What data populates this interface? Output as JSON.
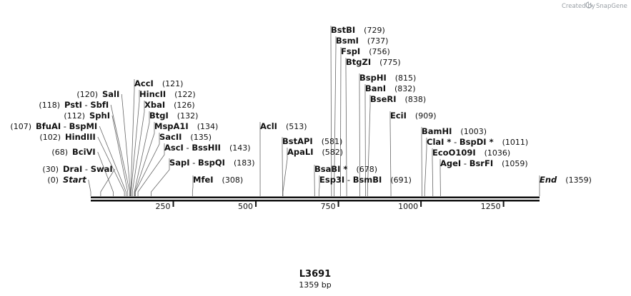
{
  "header": {
    "created_by": "Created by",
    "brand": "SnapGene"
  },
  "plasmid": {
    "name": "L3691",
    "length_label": "1359 bp",
    "length_bp": 1359
  },
  "axis": {
    "ticks": [
      {
        "value": 250,
        "label": "250"
      },
      {
        "value": 500,
        "label": "500"
      },
      {
        "value": 750,
        "label": "750"
      },
      {
        "value": 1000,
        "label": "1000"
      },
      {
        "value": 1250,
        "label": "1250"
      }
    ]
  },
  "sites": [
    {
      "key": "start",
      "parts": [
        {
          "t": "Start",
          "i": true
        }
      ],
      "pos_label": "(0)",
      "bp": 0
    },
    {
      "key": "draI",
      "parts": [
        {
          "t": "DraI"
        },
        {
          "t": " - ",
          "n": true
        },
        {
          "t": "SwaI"
        }
      ],
      "pos_label": "(30)",
      "bp": 30
    },
    {
      "key": "bciVI",
      "parts": [
        {
          "t": "BciVI"
        }
      ],
      "pos_label": "(68)",
      "bp": 68
    },
    {
      "key": "hindIII",
      "parts": [
        {
          "t": "HindIII"
        }
      ],
      "pos_label": "(102)",
      "bp": 102
    },
    {
      "key": "bfuAI",
      "parts": [
        {
          "t": "BfuAI"
        },
        {
          "t": " - ",
          "n": true
        },
        {
          "t": "BspMI"
        }
      ],
      "pos_label": "(107)",
      "bp": 107
    },
    {
      "key": "sphI",
      "parts": [
        {
          "t": "SphI"
        }
      ],
      "pos_label": "(112)",
      "bp": 112
    },
    {
      "key": "pstI",
      "parts": [
        {
          "t": "PstI"
        },
        {
          "t": " - ",
          "n": true
        },
        {
          "t": "SbfI"
        }
      ],
      "pos_label": "(118)",
      "bp": 118
    },
    {
      "key": "salI",
      "parts": [
        {
          "t": "SalI"
        }
      ],
      "pos_label": "(120)",
      "bp": 120
    },
    {
      "key": "accI",
      "parts": [
        {
          "t": "AccI"
        }
      ],
      "pos_label": "(121)",
      "bp": 121
    },
    {
      "key": "hincII",
      "parts": [
        {
          "t": "HincII"
        }
      ],
      "pos_label": "(122)",
      "bp": 122
    },
    {
      "key": "xbaI",
      "parts": [
        {
          "t": "XbaI"
        }
      ],
      "pos_label": "(126)",
      "bp": 126
    },
    {
      "key": "btgI",
      "parts": [
        {
          "t": "BtgI"
        }
      ],
      "pos_label": "(132)",
      "bp": 132
    },
    {
      "key": "mspA1I",
      "parts": [
        {
          "t": "MspA1I"
        }
      ],
      "pos_label": "(134)",
      "bp": 134
    },
    {
      "key": "sacII",
      "parts": [
        {
          "t": "SacII"
        }
      ],
      "pos_label": "(135)",
      "bp": 135
    },
    {
      "key": "ascI",
      "parts": [
        {
          "t": "AscI"
        },
        {
          "t": " - ",
          "n": true
        },
        {
          "t": "BssHII"
        }
      ],
      "pos_label": "(143)",
      "bp": 143
    },
    {
      "key": "sapI",
      "parts": [
        {
          "t": "SapI"
        },
        {
          "t": " - ",
          "n": true
        },
        {
          "t": "BspQI"
        }
      ],
      "pos_label": "(183)",
      "bp": 183
    },
    {
      "key": "mfeI",
      "parts": [
        {
          "t": "MfeI"
        }
      ],
      "pos_label": "(308)",
      "bp": 308
    },
    {
      "key": "aclI",
      "parts": [
        {
          "t": "AclI"
        }
      ],
      "pos_label": "(513)",
      "bp": 513
    },
    {
      "key": "bstAPI",
      "parts": [
        {
          "t": "BstAPI"
        }
      ],
      "pos_label": "(581)",
      "bp": 581
    },
    {
      "key": "apaLI",
      "parts": [
        {
          "t": "ApaLI"
        }
      ],
      "pos_label": "(582)",
      "bp": 582
    },
    {
      "key": "bsaBI",
      "parts": [
        {
          "t": "BsaBI"
        },
        {
          "t": " *"
        }
      ],
      "pos_label": "(678)",
      "bp": 678
    },
    {
      "key": "esp3I",
      "parts": [
        {
          "t": "Esp3I"
        },
        {
          "t": " - ",
          "n": true
        },
        {
          "t": "BsmBI"
        }
      ],
      "pos_label": "(691)",
      "bp": 691
    },
    {
      "key": "bstBI",
      "parts": [
        {
          "t": "BstBI"
        }
      ],
      "pos_label": "(729)",
      "bp": 729
    },
    {
      "key": "bsmI",
      "parts": [
        {
          "t": "BsmI"
        }
      ],
      "pos_label": "(737)",
      "bp": 737
    },
    {
      "key": "fspI",
      "parts": [
        {
          "t": "FspI"
        }
      ],
      "pos_label": "(756)",
      "bp": 756
    },
    {
      "key": "btgZI",
      "parts": [
        {
          "t": "BtgZI"
        }
      ],
      "pos_label": "(775)",
      "bp": 775
    },
    {
      "key": "bspHI",
      "parts": [
        {
          "t": "BspHI"
        }
      ],
      "pos_label": "(815)",
      "bp": 815
    },
    {
      "key": "banI",
      "parts": [
        {
          "t": "BanI"
        }
      ],
      "pos_label": "(832)",
      "bp": 832
    },
    {
      "key": "bseRI",
      "parts": [
        {
          "t": "BseRI"
        }
      ],
      "pos_label": "(838)",
      "bp": 838
    },
    {
      "key": "eciI",
      "parts": [
        {
          "t": "EciI"
        }
      ],
      "pos_label": "(909)",
      "bp": 909
    },
    {
      "key": "bamHI",
      "parts": [
        {
          "t": "BamHI"
        }
      ],
      "pos_label": "(1003)",
      "bp": 1003
    },
    {
      "key": "claI",
      "parts": [
        {
          "t": "ClaI"
        },
        {
          "t": " *"
        },
        {
          "t": " - ",
          "n": true
        },
        {
          "t": "BspDI"
        },
        {
          "t": " *"
        }
      ],
      "pos_label": "(1011)",
      "bp": 1011
    },
    {
      "key": "ecoO109I",
      "parts": [
        {
          "t": "EcoO109I"
        }
      ],
      "pos_label": "(1036)",
      "bp": 1036
    },
    {
      "key": "ageI",
      "parts": [
        {
          "t": "AgeI"
        },
        {
          "t": " - ",
          "n": true
        },
        {
          "t": "BsrFI"
        }
      ],
      "pos_label": "(1059)",
      "bp": 1059
    },
    {
      "key": "end",
      "parts": [
        {
          "t": "End",
          "i": true
        }
      ],
      "pos_label": "(1359)",
      "bp": 1359
    }
  ]
}
